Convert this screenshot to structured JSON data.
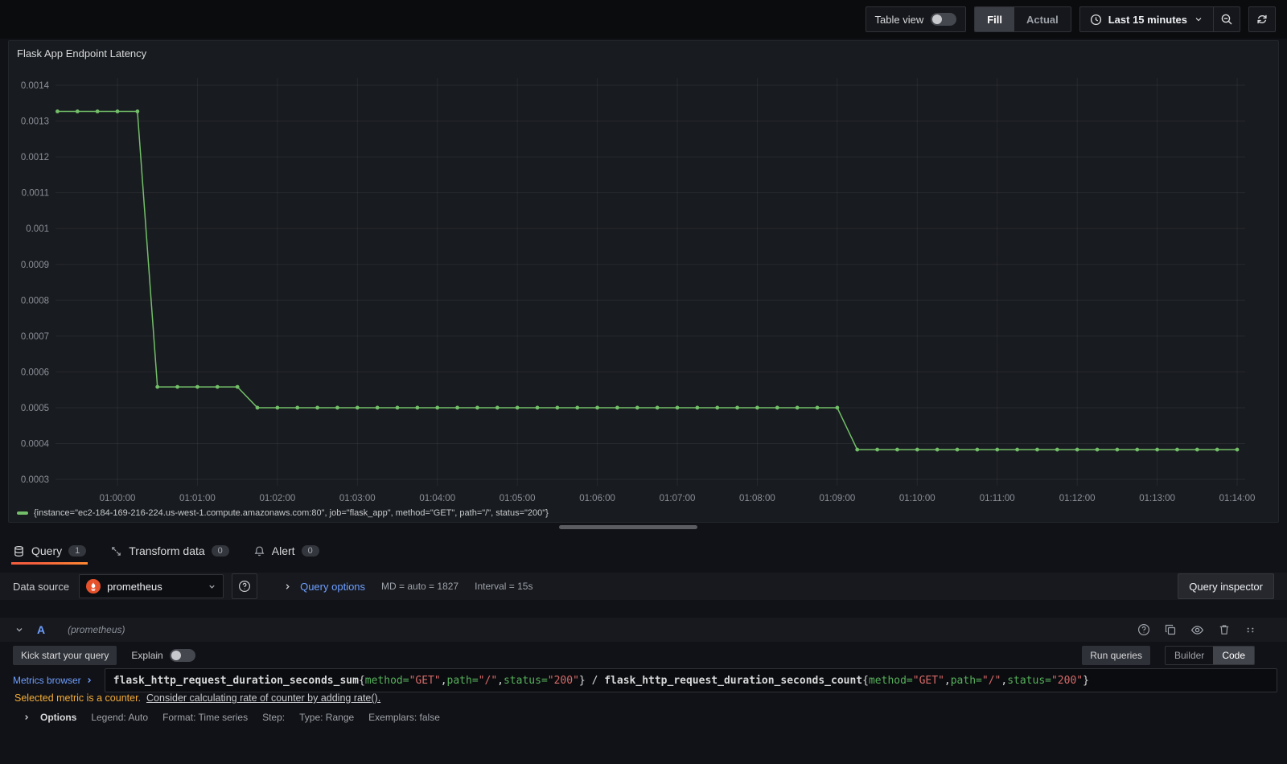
{
  "toolbar": {
    "table_view_label": "Table view",
    "fill_label": "Fill",
    "actual_label": "Actual",
    "time_range_label": "Last 15 minutes"
  },
  "panel": {
    "title": "Flask App Endpoint Latency"
  },
  "chart_data": {
    "type": "line",
    "title": "Flask App Endpoint Latency",
    "xlabel": "",
    "ylabel": "",
    "grid": true,
    "legend_position": "bottom",
    "ylim": [
      0.0003,
      0.0014
    ],
    "x_range": [
      "00:59:15",
      "01:14:00"
    ],
    "interval_seconds": 15,
    "y_ticks": [
      "0.0014",
      "0.0013",
      "0.0012",
      "0.0011",
      "0.001",
      "0.0009",
      "0.0008",
      "0.0007",
      "0.0006",
      "0.0005",
      "0.0004",
      "0.0003"
    ],
    "x_ticks": [
      "01:00:00",
      "01:01:00",
      "01:02:00",
      "01:03:00",
      "01:04:00",
      "01:05:00",
      "01:06:00",
      "01:07:00",
      "01:08:00",
      "01:09:00",
      "01:10:00",
      "01:11:00",
      "01:12:00",
      "01:13:00",
      "01:14:00"
    ],
    "series": [
      {
        "name": "{instance=\"ec2-184-169-216-224.us-west-1.compute.amazonaws.com:80\", job=\"flask_app\", method=\"GET\", path=\"/\", status=\"200\"}",
        "color": "#73BF69",
        "segments": [
          {
            "from": "00:59:15",
            "to": "01:00:15",
            "value": 0.001327
          },
          {
            "from": "01:00:30",
            "to": "01:01:30",
            "value": 0.000558
          },
          {
            "from": "01:01:45",
            "to": "01:09:00",
            "value": 0.0005
          },
          {
            "from": "01:09:15",
            "to": "01:14:00",
            "value": 0.000383
          }
        ]
      }
    ]
  },
  "tabs": [
    {
      "label": "Query",
      "badge": "1"
    },
    {
      "label": "Transform data",
      "badge": "0"
    },
    {
      "label": "Alert",
      "badge": "0"
    }
  ],
  "datasource_bar": {
    "label": "Data source",
    "selected": "prometheus",
    "query_options_label": "Query options",
    "summary_md": "MD = auto = 1827",
    "summary_interval": "Interval = 15s",
    "query_inspector_label": "Query inspector"
  },
  "query_row": {
    "ref_id": "A",
    "datasource_hint": "(prometheus)",
    "kick_start_label": "Kick start your query",
    "explain_label": "Explain",
    "run_queries_label": "Run queries",
    "builder_label": "Builder",
    "code_label": "Code",
    "metrics_browser_label": "Metrics browser",
    "expr_tokens": [
      {
        "c": "metric",
        "t": "flask_http_request_duration_seconds_sum"
      },
      {
        "c": "punct",
        "t": "{"
      },
      {
        "c": "label",
        "t": "method="
      },
      {
        "c": "string",
        "t": "\"GET\""
      },
      {
        "c": "punct",
        "t": ","
      },
      {
        "c": "label",
        "t": "path="
      },
      {
        "c": "string",
        "t": "\"/\""
      },
      {
        "c": "punct",
        "t": ","
      },
      {
        "c": "label",
        "t": "status="
      },
      {
        "c": "string",
        "t": "\"200\""
      },
      {
        "c": "punct",
        "t": "} / "
      },
      {
        "c": "metric",
        "t": "flask_http_request_duration_seconds_count"
      },
      {
        "c": "punct",
        "t": "{"
      },
      {
        "c": "label",
        "t": "method="
      },
      {
        "c": "string",
        "t": "\"GET\""
      },
      {
        "c": "punct",
        "t": ","
      },
      {
        "c": "label",
        "t": "path="
      },
      {
        "c": "string",
        "t": "\"/\""
      },
      {
        "c": "punct",
        "t": ","
      },
      {
        "c": "label",
        "t": "status="
      },
      {
        "c": "string",
        "t": "\"200\""
      },
      {
        "c": "punct",
        "t": "}"
      }
    ],
    "warning_text": "Selected metric is a counter.",
    "warning_link": "Consider calculating rate of counter by adding rate().",
    "options": {
      "label": "Options",
      "legend": "Legend: Auto",
      "format": "Format: Time series",
      "step": "Step:",
      "type": "Type: Range",
      "exemplars": "Exemplars: false"
    }
  },
  "colors": {
    "accent_orange": "#ff780a",
    "series_green": "#73BF69",
    "link_blue": "#6e9fff",
    "warning_amber": "#f3ac38",
    "prometheus_orange": "#e6522c",
    "code": {
      "metric": "#d8d9da",
      "punct": "#d8d9da",
      "label": "#56b15c",
      "string": "#d66a6a"
    }
  },
  "icons": {
    "table_view_toggle": "switch",
    "time_range": "clock",
    "zoom_out": "magnifier-minus",
    "refresh": "circular-arrows",
    "query_tab": "database",
    "transform_tab": "swap-arrows",
    "alert_tab": "bell",
    "datasource_help": "question-circle",
    "collapse": "chevron-down",
    "expand": "chevron-right",
    "duplicate": "copy",
    "toggle_visibility": "eye",
    "remove": "trash",
    "drag": "grip-dots",
    "prometheus": "flame-torch"
  }
}
